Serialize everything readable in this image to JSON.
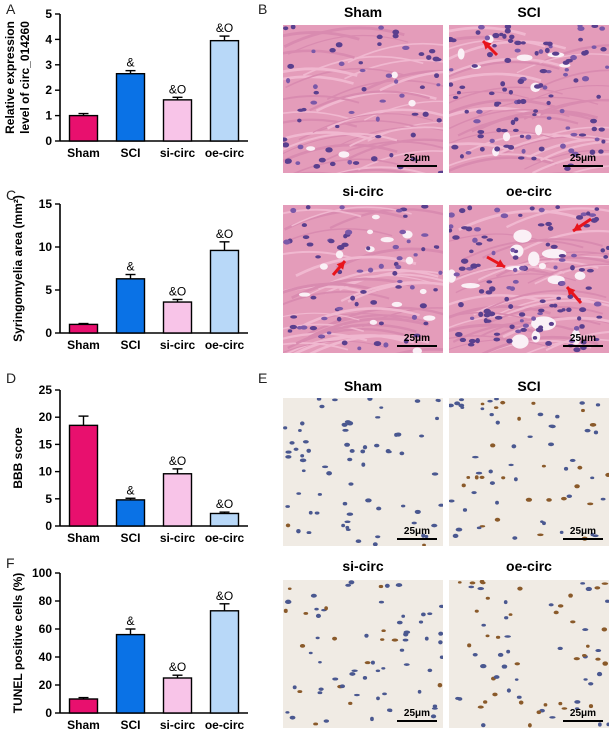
{
  "panels": {
    "A": "A",
    "B": "B",
    "C": "C",
    "D": "D",
    "E": "E",
    "F": "F"
  },
  "he_titles": [
    "Sham",
    "SCI",
    "si-circ",
    "oe-circ"
  ],
  "ihc_titles": [
    "Sham",
    "SCI",
    "si-circ",
    "oe-circ"
  ],
  "scale_bar": "25μm",
  "colors": {
    "sham": "#e8106e",
    "sci": "#0a72e6",
    "si": "#f8c4e8",
    "oe": "#b8d8f8",
    "he_background": "#e49cba",
    "ihc_background": "#f0ebe4",
    "arrow": "#e8141c"
  },
  "chart_data": [
    {
      "id": "A",
      "type": "bar",
      "categories": [
        "Sham",
        "SCI",
        "si-circ",
        "oe-circ"
      ],
      "values": [
        1.0,
        2.65,
        1.62,
        3.95
      ],
      "errors": [
        0.08,
        0.12,
        0.1,
        0.18
      ],
      "annotations": [
        "",
        "&",
        "&O",
        "&O"
      ],
      "ylabel": "Relative expression level of circ_014260",
      "ylim": [
        0,
        5
      ],
      "yticks": [
        0,
        1,
        2,
        3,
        4,
        5
      ]
    },
    {
      "id": "C",
      "type": "bar",
      "categories": [
        "Sham",
        "SCI",
        "si-circ",
        "oe-circ"
      ],
      "values": [
        1.0,
        6.3,
        3.6,
        9.6
      ],
      "errors": [
        0.1,
        0.5,
        0.3,
        1.0
      ],
      "annotations": [
        "",
        "&",
        "&O",
        "&O"
      ],
      "ylabel": "Syringomyelia area (mm²)",
      "ylim": [
        0,
        15
      ],
      "yticks": [
        0,
        5,
        10,
        15
      ]
    },
    {
      "id": "D",
      "type": "bar",
      "categories": [
        "Sham",
        "SCI",
        "si-circ",
        "oe-circ"
      ],
      "values": [
        18.5,
        4.8,
        9.6,
        2.3
      ],
      "errors": [
        1.7,
        0.3,
        0.9,
        0.25
      ],
      "annotations": [
        "",
        "&",
        "&O",
        "&O"
      ],
      "ylabel": "BBB score",
      "ylim": [
        0,
        25
      ],
      "yticks": [
        0,
        5,
        10,
        15,
        20,
        25
      ]
    },
    {
      "id": "F",
      "type": "bar",
      "categories": [
        "Sham",
        "SCI",
        "si-circ",
        "oe-circ"
      ],
      "values": [
        10,
        56,
        25,
        73
      ],
      "errors": [
        1.0,
        4.0,
        2.0,
        5.0
      ],
      "annotations": [
        "",
        "&",
        "&O",
        "&O"
      ],
      "ylabel": "TUNEL positive cells (%)",
      "ylim": [
        0,
        100
      ],
      "yticks": [
        0,
        20,
        40,
        60,
        80,
        100
      ]
    }
  ]
}
